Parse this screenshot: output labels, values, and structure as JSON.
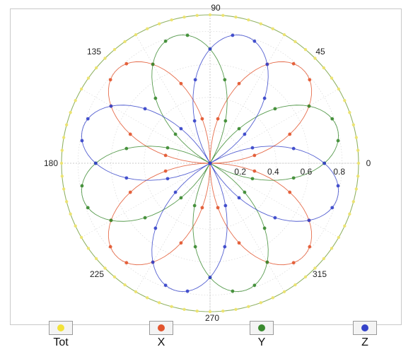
{
  "chart_data": {
    "type": "polar",
    "title": "",
    "angle_unit": "degrees",
    "angle_ticks": [
      "0",
      "45",
      "90",
      "135",
      "180",
      "225",
      "270",
      "315"
    ],
    "radial_ticks": [
      "0.2",
      "0.4",
      "0.6",
      "0.8"
    ],
    "r_max": 0.9,
    "theta_step_deg": 10,
    "series": [
      {
        "name": "Tot",
        "color": "#e6d400",
        "amplitude": 0.9,
        "pattern": "constant"
      },
      {
        "name": "X",
        "color": "#e2552e",
        "amplitude": 0.8,
        "pattern": "abs_sin_2theta_phase_45"
      },
      {
        "name": "Y",
        "color": "#3a8a2f",
        "amplitude": 0.8,
        "pattern": "abs_sin_2theta_phase_15"
      },
      {
        "name": "Z",
        "color": "#3543c9",
        "amplitude": 0.8,
        "pattern": "abs_sin_2theta_phase_75"
      }
    ],
    "legend_position": "bottom",
    "grid": true
  },
  "legend": [
    {
      "label": "Tot",
      "color": "#f2e23a"
    },
    {
      "label": "X",
      "color": "#e2552e"
    },
    {
      "label": "Y",
      "color": "#3a8a2f"
    },
    {
      "label": "Z",
      "color": "#3543c9"
    }
  ]
}
